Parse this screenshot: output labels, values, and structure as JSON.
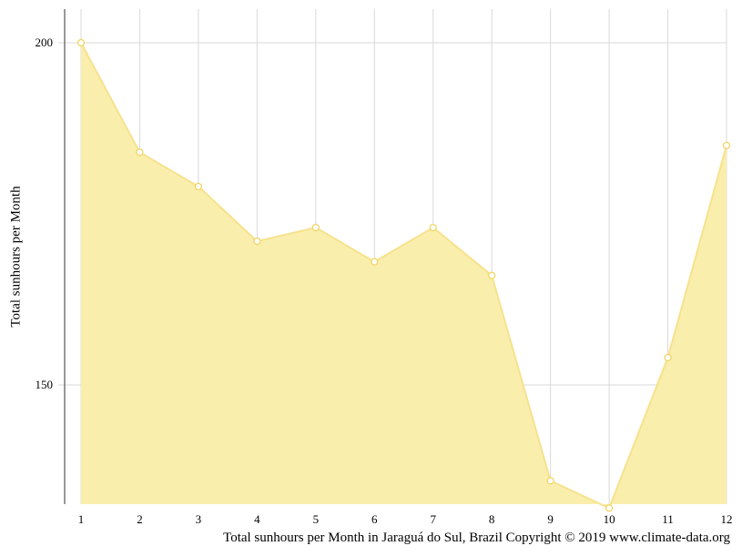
{
  "chart_data": {
    "type": "area",
    "x": [
      1,
      2,
      3,
      4,
      5,
      6,
      7,
      8,
      9,
      10,
      11,
      12
    ],
    "categories": [
      "1",
      "2",
      "3",
      "4",
      "5",
      "6",
      "7",
      "8",
      "9",
      "10",
      "11",
      "12"
    ],
    "values": [
      200,
      184,
      179,
      171,
      173,
      168,
      173,
      166,
      136,
      132,
      154,
      185
    ],
    "ylabel": "Total sunhours per Month",
    "xlabel": "",
    "caption": "Total sunhours per Month in Jaraguá do Sul, Brazil Copyright © 2019 www.climate-data.org",
    "yticks": [
      150,
      200
    ],
    "ytick_labels": [
      "150",
      "200"
    ],
    "ylim": [
      132,
      205
    ],
    "xlim": [
      1,
      12
    ],
    "grid": true,
    "legend": "none",
    "colors": {
      "fill": "#f9eeac",
      "line": "#f7e28e",
      "marker_fill": "#ffffff",
      "marker_stroke": "#f0d35c",
      "grid": "#d9d9d9",
      "axis": "#555555"
    }
  }
}
